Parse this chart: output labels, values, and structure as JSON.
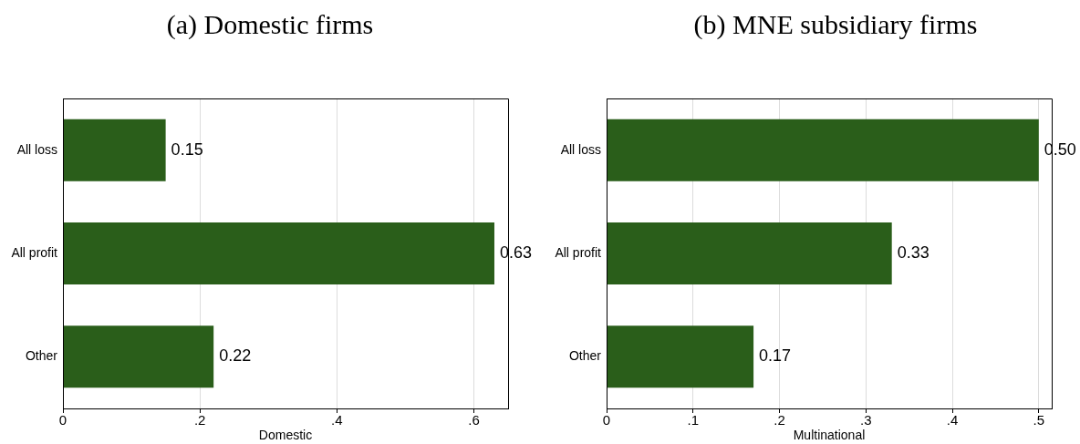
{
  "chart_data": [
    {
      "type": "bar",
      "orientation": "horizontal",
      "title": "(a) Domestic firms",
      "xlabel": "Domestic",
      "categories": [
        "All loss",
        "All profit",
        "Other"
      ],
      "values": [
        0.15,
        0.63,
        0.22
      ],
      "value_labels": [
        "0.15",
        "0.63",
        "0.22"
      ],
      "color": "#2a5e1a",
      "xlim": [
        0,
        0.65
      ],
      "xticks": [
        0,
        {
          "value": 0.2,
          "label": ".2"
        },
        {
          "value": 0.4,
          "label": ".4"
        },
        {
          "value": 0.6,
          "label": ".6"
        }
      ],
      "grid": "x"
    },
    {
      "type": "bar",
      "orientation": "horizontal",
      "title": "(b) MNE subsidiary firms",
      "xlabel": "Multinational",
      "categories": [
        "All loss",
        "All profit",
        "Other"
      ],
      "values": [
        0.5,
        0.33,
        0.17
      ],
      "value_labels": [
        "0.50",
        "0.33",
        "0.17"
      ],
      "color": "#2a5e1a",
      "xlim": [
        0,
        0.515
      ],
      "xticks": [
        0,
        {
          "value": 0.1,
          "label": ".1"
        },
        {
          "value": 0.2,
          "label": ".2"
        },
        {
          "value": 0.3,
          "label": ".3"
        },
        {
          "value": 0.4,
          "label": ".4"
        },
        {
          "value": 0.5,
          "label": ".5"
        }
      ],
      "grid": "x"
    }
  ]
}
